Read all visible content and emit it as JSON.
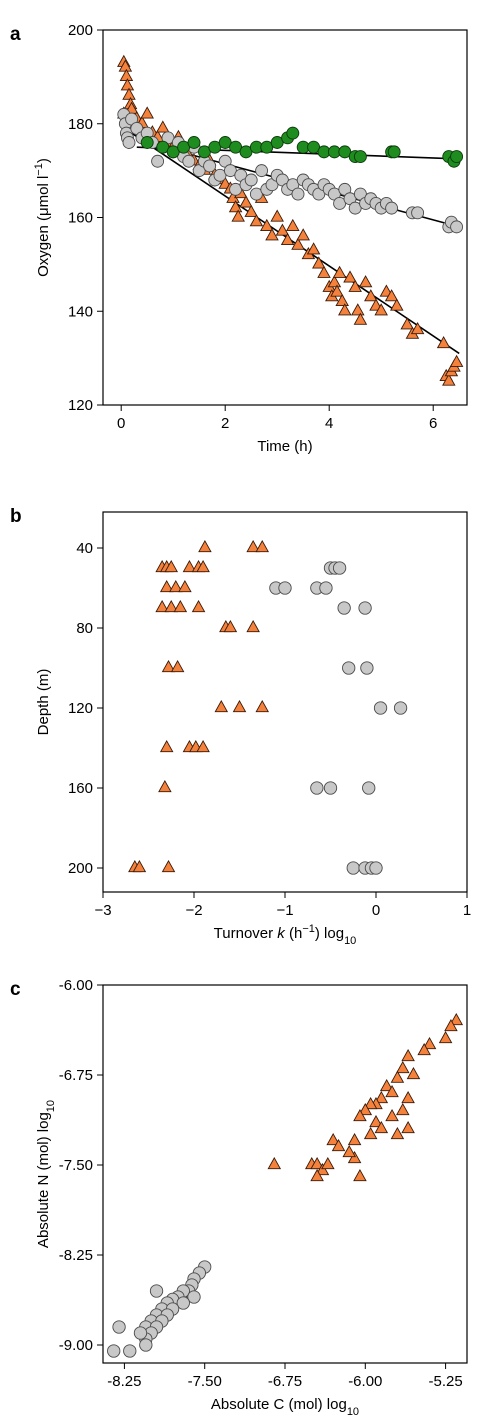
{
  "chart_data": [
    {
      "panel": "a",
      "type": "scatter",
      "title": "",
      "xlabel": "Time (h)",
      "ylabel": "Oxygen (μmol l⁻¹)",
      "xlim": [
        -0.35,
        6.65
      ],
      "ylim": [
        120,
        200
      ],
      "xticks": [
        0,
        2,
        4,
        6
      ],
      "yticks": [
        120,
        140,
        160,
        180,
        200
      ],
      "grid": false,
      "series": [
        {
          "marker": "triangle",
          "color": "#f4823c",
          "x": [
            0.05,
            0.08,
            0.1,
            0.12,
            0.15,
            0.18,
            0.05,
            0.1,
            0.15,
            0.2,
            0.3,
            0.4,
            0.5,
            0.6,
            0.7,
            0.8,
            0.9,
            1.0,
            1.1,
            1.2,
            1.3,
            1.4,
            1.5,
            1.6,
            1.7,
            1.8,
            1.9,
            2.0,
            2.1,
            2.15,
            2.2,
            2.25,
            2.3,
            2.4,
            2.5,
            2.6,
            2.7,
            2.8,
            2.9,
            3.0,
            3.1,
            3.2,
            3.3,
            3.4,
            3.5,
            3.6,
            3.7,
            3.8,
            3.9,
            4.0,
            4.05,
            4.1,
            4.15,
            4.2,
            4.25,
            4.3,
            4.4,
            4.5,
            4.55,
            4.6,
            4.7,
            4.8,
            4.9,
            5.0,
            5.1,
            5.2,
            5.3,
            5.5,
            5.6,
            5.7,
            6.2,
            6.25,
            6.3,
            6.35,
            6.4,
            6.45
          ],
          "y": [
            193,
            192,
            190,
            188,
            186,
            184,
            182,
            181,
            180,
            183,
            181,
            180,
            182,
            178,
            177,
            179,
            176,
            175,
            177,
            174,
            173,
            172,
            171,
            170,
            172,
            169,
            168,
            167,
            166,
            164,
            162,
            160,
            165,
            163,
            161,
            159,
            164,
            158,
            156,
            160,
            157,
            155,
            158,
            154,
            156,
            152,
            153,
            150,
            148,
            145,
            143,
            146,
            144,
            148,
            142,
            140,
            147,
            145,
            140,
            138,
            146,
            143,
            141,
            140,
            144,
            143,
            141,
            137,
            135,
            136,
            133,
            126,
            125,
            127,
            128,
            129
          ]
        },
        {
          "marker": "circle",
          "color": "#c8c8c8",
          "x": [
            0.05,
            0.08,
            0.1,
            0.12,
            0.15,
            0.2,
            0.3,
            0.4,
            0.5,
            0.6,
            0.7,
            0.8,
            0.9,
            1.0,
            1.1,
            1.2,
            1.3,
            1.4,
            1.5,
            1.6,
            1.7,
            1.8,
            1.9,
            2.0,
            2.1,
            2.2,
            2.3,
            2.4,
            2.5,
            2.6,
            2.7,
            2.8,
            2.9,
            3.0,
            3.1,
            3.2,
            3.3,
            3.4,
            3.5,
            3.6,
            3.7,
            3.8,
            3.9,
            4.0,
            4.1,
            4.2,
            4.3,
            4.4,
            4.5,
            4.6,
            4.7,
            4.8,
            4.9,
            5.0,
            5.1,
            5.2,
            5.6,
            5.7,
            6.3,
            6.35,
            6.45
          ],
          "y": [
            182,
            180,
            178,
            177,
            176,
            181,
            179,
            177,
            178,
            176,
            172,
            175,
            177,
            174,
            176,
            173,
            172,
            175,
            170,
            172,
            171,
            168,
            169,
            172,
            170,
            166,
            169,
            167,
            168,
            165,
            170,
            166,
            167,
            169,
            168,
            166,
            167,
            165,
            168,
            167,
            166,
            165,
            167,
            166,
            165,
            163,
            166,
            164,
            162,
            165,
            163,
            164,
            163,
            162,
            163,
            162,
            161,
            161,
            158,
            159,
            158
          ]
        },
        {
          "marker": "circle",
          "color": "#1e8c1e",
          "x": [
            0.5,
            0.8,
            1.0,
            1.2,
            1.4,
            1.6,
            1.8,
            2.0,
            2.2,
            2.4,
            2.6,
            2.8,
            3.0,
            3.2,
            3.3,
            3.5,
            3.7,
            3.9,
            4.1,
            4.3,
            4.5,
            4.6,
            5.2,
            5.25,
            6.3,
            6.4,
            6.45
          ],
          "y": [
            176,
            175,
            174,
            175,
            176,
            174,
            175,
            176,
            175,
            174,
            175,
            175,
            176,
            177,
            178,
            175,
            175,
            174,
            174,
            174,
            173,
            173,
            174,
            174,
            173,
            172,
            173
          ]
        }
      ]
    },
    {
      "panel": "b",
      "type": "scatter",
      "title": "",
      "xlabel": "Turnover k (h⁻¹) log₁₀",
      "ylabel": "Depth (m)",
      "xlim": [
        -3,
        1
      ],
      "ylim": [
        212,
        22
      ],
      "xticks": [
        -3,
        -2,
        -1,
        0,
        1
      ],
      "yticks": [
        40,
        80,
        120,
        160,
        200
      ],
      "grid": false,
      "series": [
        {
          "marker": "triangle",
          "color": "#f4823c",
          "x": [
            -1.88,
            -1.35,
            -1.25,
            -2.35,
            -2.3,
            -2.25,
            -2.05,
            -1.95,
            -1.9,
            -2.3,
            -2.2,
            -2.1,
            -2.35,
            -2.25,
            -2.15,
            -1.95,
            -1.65,
            -1.6,
            -1.35,
            -2.28,
            -2.18,
            -1.7,
            -1.5,
            -1.25,
            -2.3,
            -2.05,
            -1.98,
            -1.9,
            -2.32,
            -2.65,
            -2.6,
            -2.28
          ],
          "y": [
            40,
            40,
            40,
            50,
            50,
            50,
            50,
            50,
            50,
            60,
            60,
            60,
            70,
            70,
            70,
            70,
            80,
            80,
            80,
            100,
            100,
            120,
            120,
            120,
            140,
            140,
            140,
            140,
            160,
            200,
            200,
            200
          ]
        },
        {
          "marker": "circle",
          "color": "#c8c8c8",
          "x": [
            -0.5,
            -0.45,
            -0.4,
            -1.1,
            -1.0,
            -0.65,
            -0.55,
            -0.35,
            -0.12,
            -0.3,
            -0.1,
            0.05,
            0.27,
            -0.65,
            -0.5,
            -0.08,
            -0.25,
            -0.12,
            -0.05,
            0.0
          ],
          "y": [
            50,
            50,
            50,
            60,
            60,
            60,
            60,
            70,
            70,
            100,
            100,
            120,
            120,
            160,
            160,
            160,
            200,
            200,
            200,
            200
          ]
        }
      ]
    },
    {
      "panel": "c",
      "type": "scatter",
      "title": "",
      "xlabel": "Absolute C (mol) log₁₀",
      "ylabel": "Absolute N (mol) log₁₀",
      "xlim": [
        -8.45,
        -5.05
      ],
      "ylim": [
        -9.15,
        -6.0
      ],
      "xticks": [
        -8.25,
        -7.5,
        -6.75,
        -6.0,
        -5.25
      ],
      "xtick_labels": [
        "-8.25",
        "-7.50",
        "-6.75",
        "-6.00",
        "-5.25"
      ],
      "yticks": [
        -9.0,
        -8.25,
        -7.5,
        -6.75,
        -6.0
      ],
      "ytick_labels": [
        "-9.00",
        "-8.25",
        "-7.50",
        "-6.75",
        "-6.00"
      ],
      "grid": false,
      "series": [
        {
          "marker": "triangle",
          "color": "#f4823c",
          "x": [
            -5.15,
            -5.2,
            -5.25,
            -5.4,
            -5.45,
            -5.6,
            -5.65,
            -5.55,
            -5.7,
            -5.8,
            -5.75,
            -5.85,
            -5.9,
            -5.95,
            -5.6,
            -5.65,
            -5.75,
            -5.9,
            -6.0,
            -6.05,
            -5.85,
            -5.95,
            -6.1,
            -5.7,
            -5.6,
            -6.3,
            -6.25,
            -6.1,
            -6.5,
            -6.45,
            -6.4,
            -6.15,
            -6.35,
            -6.05,
            -6.85,
            -6.45
          ],
          "y": [
            -6.3,
            -6.35,
            -6.45,
            -6.5,
            -6.55,
            -6.6,
            -6.7,
            -6.75,
            -6.78,
            -6.85,
            -6.9,
            -6.95,
            -7.0,
            -7.0,
            -6.95,
            -7.05,
            -7.1,
            -7.15,
            -7.05,
            -7.1,
            -7.2,
            -7.25,
            -7.3,
            -7.25,
            -7.2,
            -7.3,
            -7.35,
            -7.45,
            -7.5,
            -7.5,
            -7.55,
            -7.4,
            -7.5,
            -7.6,
            -7.5,
            -7.6
          ]
        },
        {
          "marker": "circle",
          "color": "#c8c8c8",
          "x": [
            -7.5,
            -7.55,
            -7.6,
            -7.62,
            -7.65,
            -7.7,
            -7.75,
            -7.8,
            -7.85,
            -7.9,
            -7.95,
            -8.0,
            -8.05,
            -7.6,
            -7.7,
            -7.8,
            -7.85,
            -7.9,
            -7.95,
            -8.0,
            -8.05,
            -8.1,
            -7.95,
            -8.3,
            -8.2,
            -8.35,
            -8.05
          ],
          "y": [
            -8.35,
            -8.4,
            -8.45,
            -8.5,
            -8.55,
            -8.55,
            -8.6,
            -8.62,
            -8.65,
            -8.7,
            -8.75,
            -8.8,
            -8.85,
            -8.6,
            -8.65,
            -8.7,
            -8.75,
            -8.8,
            -8.85,
            -8.9,
            -8.95,
            -8.9,
            -8.55,
            -8.85,
            -9.05,
            -9.05,
            -9.0
          ]
        }
      ]
    }
  ]
}
